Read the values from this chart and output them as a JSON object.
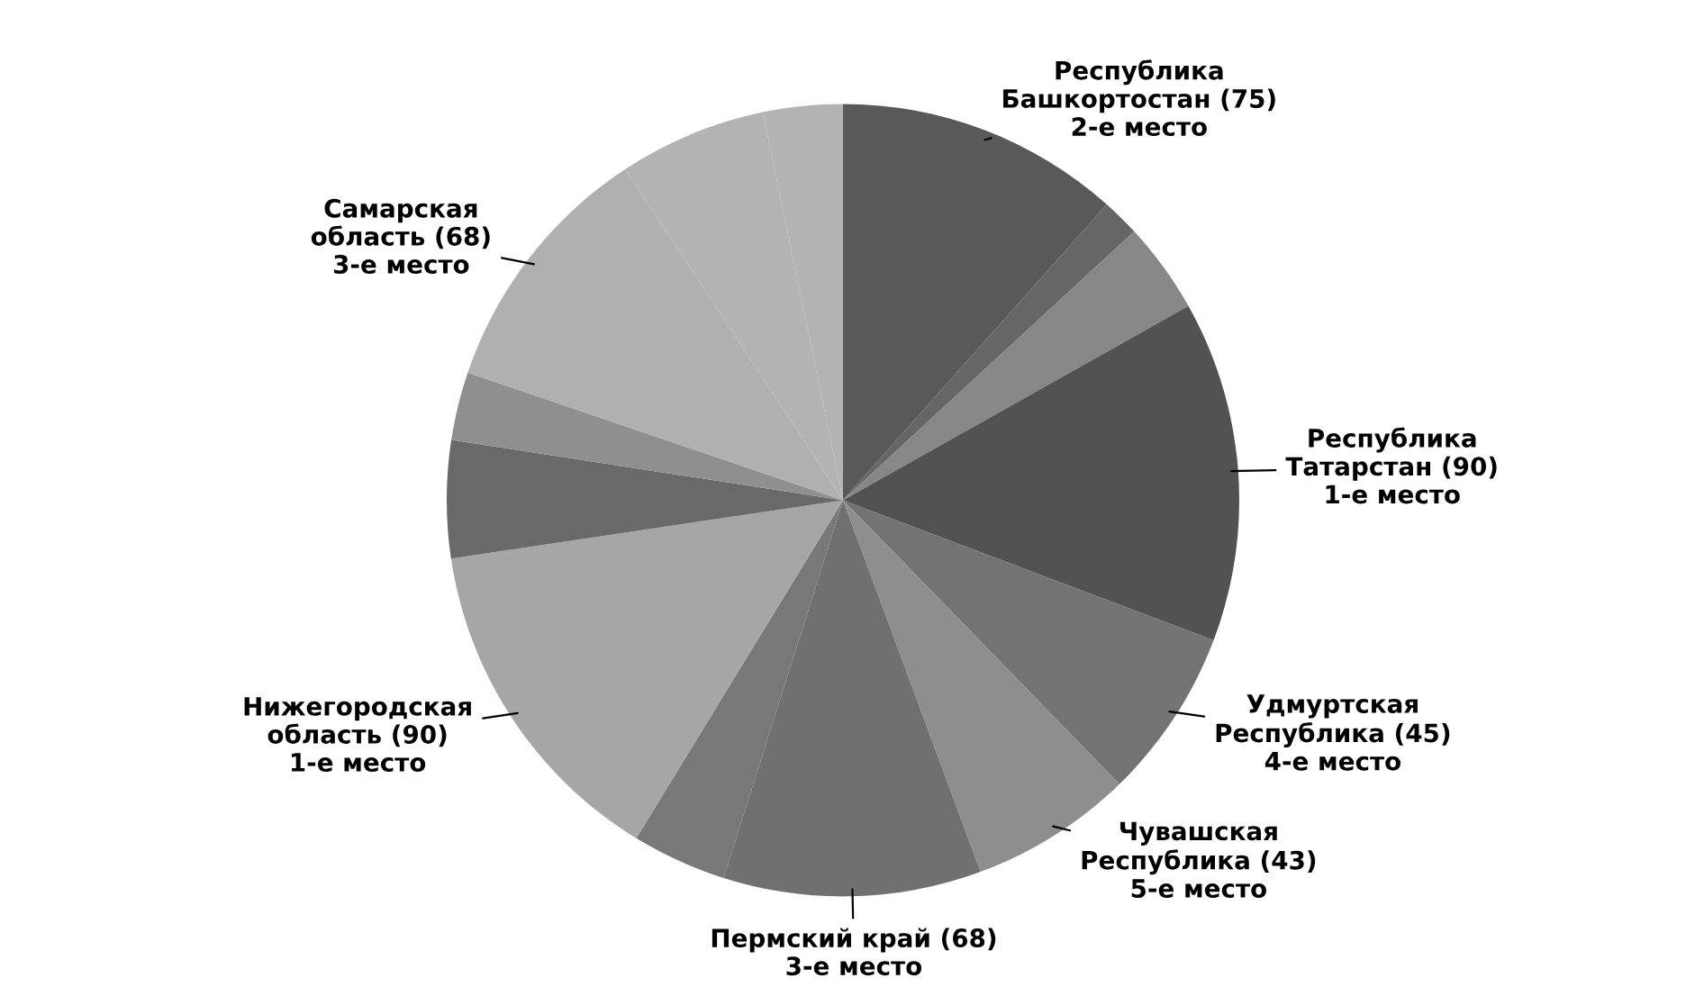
{
  "chart_data": {
    "type": "pie",
    "categories": [
      "Республика\nБашкортостан (75)\n2-е место",
      null,
      null,
      "Республика\nТатарстан (90)\n1-е место",
      "Удмуртская\nРеспублика (45)\n4-е место",
      "Чувашская\nРеспублика (43)\n5-е место",
      "Пермский край (68)\n3-е место",
      null,
      "Нижегородская\nобласть (90)\n1-е место",
      null,
      null,
      "Самарская\nобласть (68)\n3-е место",
      null,
      null
    ],
    "values": [
      75,
      10,
      24,
      90,
      45,
      43,
      68,
      25,
      90,
      31,
      18,
      68,
      39,
      21
    ],
    "colors": [
      "#595959",
      "#666666",
      "#878787",
      "#525252",
      "#737373",
      "#8e8e8e",
      "#707070",
      "#787878",
      "#a6a6a6",
      "#696969",
      "#8f8f8f",
      "#b0b0b0",
      "#b3b3b3",
      "#b3b3b3"
    ]
  }
}
